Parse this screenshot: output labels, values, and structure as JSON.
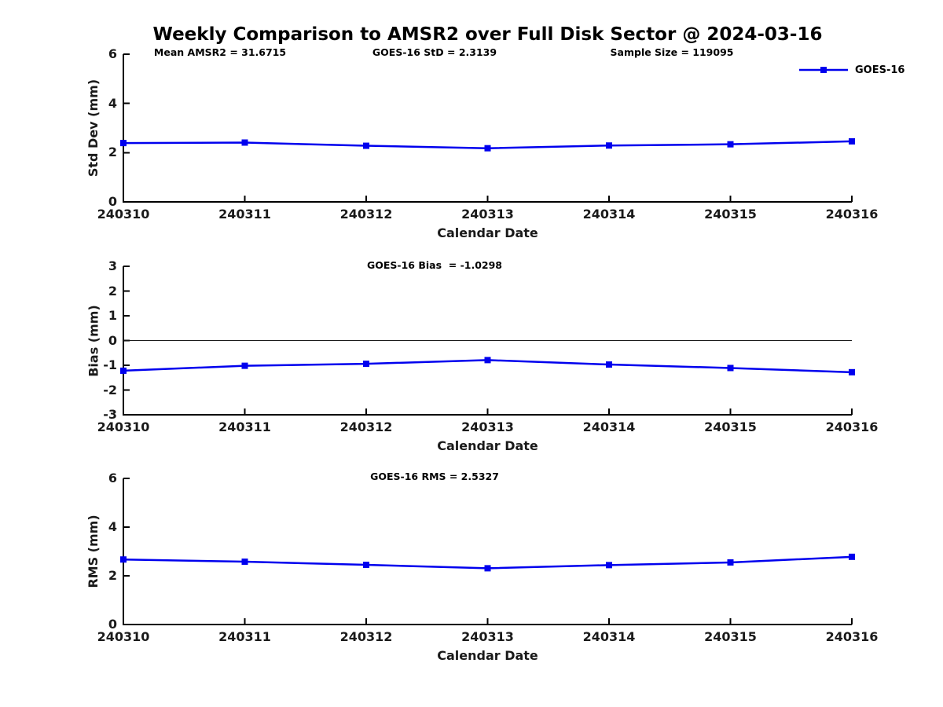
{
  "title": "Weekly Comparison to AMSR2 over Full Disk Sector @ 2024-03-16",
  "legend": {
    "label": "GOES-16"
  },
  "colors": {
    "series": "#0000EE",
    "axis": "#000000",
    "zero_line": "#1a1a1a"
  },
  "chart_data": [
    {
      "type": "line",
      "title": "",
      "annotations": [
        "Mean AMSR2 = 31.6715",
        "GOES-16 StD = 2.3139",
        "Sample Size = 119095"
      ],
      "categories": [
        "240310",
        "240311",
        "240312",
        "240313",
        "240314",
        "240315",
        "240316"
      ],
      "series": [
        {
          "name": "GOES-16",
          "values": [
            2.39,
            2.41,
            2.28,
            2.18,
            2.29,
            2.34,
            2.46
          ]
        }
      ],
      "xlabel": "Calendar Date",
      "ylabel": "Std Dev (mm)",
      "ylim": [
        0,
        6
      ],
      "yticks": [
        0,
        2,
        4,
        6
      ],
      "grid": false,
      "zero_line": false,
      "marker": "square",
      "legend_position": "top-right-outside"
    },
    {
      "type": "line",
      "title": "",
      "annotations": [
        "GOES-16 Bias  = -1.0298"
      ],
      "categories": [
        "240310",
        "240311",
        "240312",
        "240313",
        "240314",
        "240315",
        "240316"
      ],
      "series": [
        {
          "name": "GOES-16",
          "values": [
            -1.22,
            -1.02,
            -0.94,
            -0.79,
            -0.97,
            -1.11,
            -1.28
          ]
        }
      ],
      "xlabel": "Calendar Date",
      "ylabel": "Bias (mm)",
      "ylim": [
        -3,
        3
      ],
      "yticks": [
        -3,
        -2,
        -1,
        0,
        1,
        2,
        3
      ],
      "grid": false,
      "zero_line": true,
      "marker": "square",
      "legend_position": "none"
    },
    {
      "type": "line",
      "title": "",
      "annotations": [
        "GOES-16 RMS = 2.5327"
      ],
      "categories": [
        "240310",
        "240311",
        "240312",
        "240313",
        "240314",
        "240315",
        "240316"
      ],
      "series": [
        {
          "name": "GOES-16",
          "values": [
            2.67,
            2.58,
            2.45,
            2.31,
            2.44,
            2.55,
            2.78
          ]
        }
      ],
      "xlabel": "Calendar Date",
      "ylabel": "RMS (mm)",
      "ylim": [
        0,
        6
      ],
      "yticks": [
        0,
        2,
        4,
        6
      ],
      "grid": false,
      "zero_line": false,
      "marker": "square",
      "legend_position": "none"
    }
  ]
}
